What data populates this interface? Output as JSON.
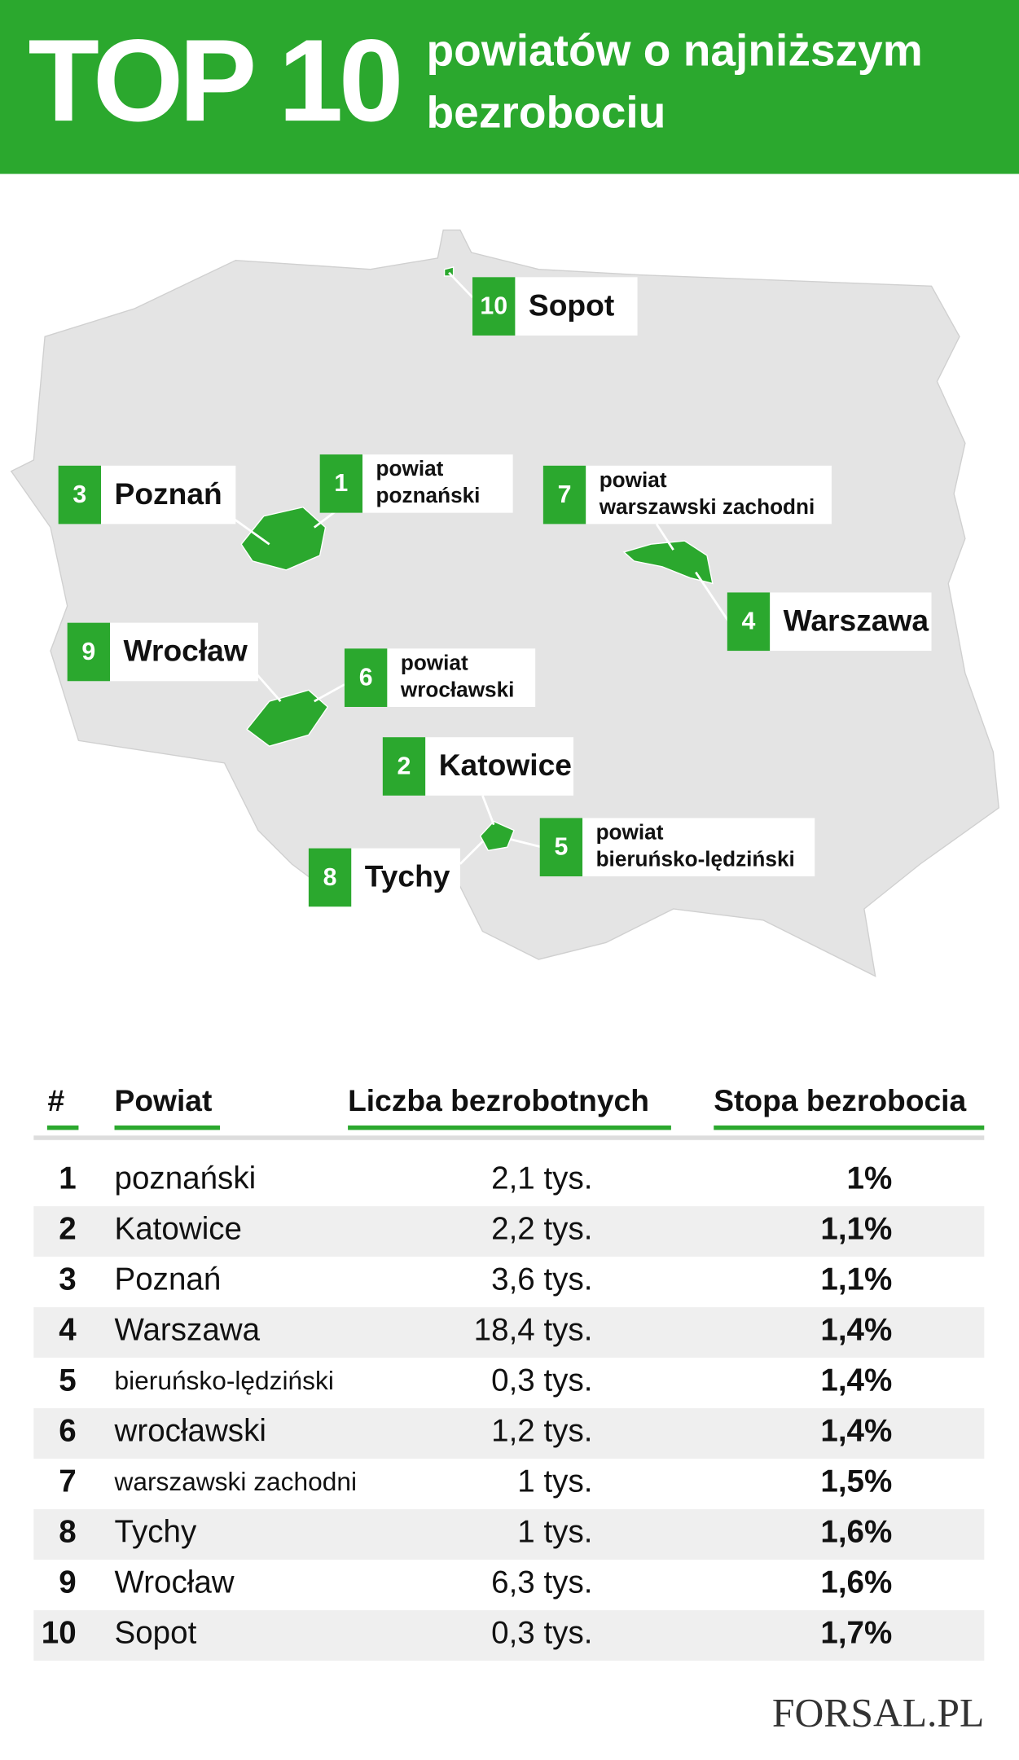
{
  "header": {
    "top": "TOP",
    "ten": "10",
    "subtitle": [
      "powiatów o najniższym",
      "bezrobociu"
    ]
  },
  "map": {
    "labels": [
      {
        "num": "1",
        "lines": [
          "powiat",
          "poznański"
        ]
      },
      {
        "num": "2",
        "lines": [
          "Katowice"
        ]
      },
      {
        "num": "3",
        "lines": [
          "Poznań"
        ]
      },
      {
        "num": "4",
        "lines": [
          "Warszawa"
        ]
      },
      {
        "num": "5",
        "lines": [
          "powiat",
          "bieruńsko-lędziński"
        ]
      },
      {
        "num": "6",
        "lines": [
          "powiat",
          "wrocławski"
        ]
      },
      {
        "num": "7",
        "lines": [
          "powiat",
          "warszawski zachodni"
        ]
      },
      {
        "num": "8",
        "lines": [
          "Tychy"
        ]
      },
      {
        "num": "9",
        "lines": [
          "Wrocław"
        ]
      },
      {
        "num": "10",
        "lines": [
          "Sopot"
        ]
      }
    ]
  },
  "table": {
    "columns": [
      "#",
      "Powiat",
      "Liczba bezrobotnych",
      "Stopa bezrobocia"
    ],
    "rows": [
      [
        "1",
        "poznański",
        "2,1 tys.",
        "1%"
      ],
      [
        "2",
        "Katowice",
        "2,2 tys.",
        "1,1%"
      ],
      [
        "3",
        "Poznań",
        "3,6 tys.",
        "1,1%"
      ],
      [
        "4",
        "Warszawa",
        "18,4 tys.",
        "1,4%"
      ],
      [
        "5",
        "bieruńsko-lędziński",
        "0,3 tys.",
        "1,4%"
      ],
      [
        "6",
        "wrocławski",
        "1,2 tys.",
        "1,4%"
      ],
      [
        "7",
        "warszawski zachodni",
        "1 tys.",
        "1,5%"
      ],
      [
        "8",
        "Tychy",
        "1 tys.",
        "1,6%"
      ],
      [
        "9",
        "Wrocław",
        "6,3 tys.",
        "1,6%"
      ],
      [
        "10",
        "Sopot",
        "0,3 tys.",
        "1,7%"
      ]
    ]
  },
  "footer": {
    "logo": "FORSAL.PL"
  }
}
